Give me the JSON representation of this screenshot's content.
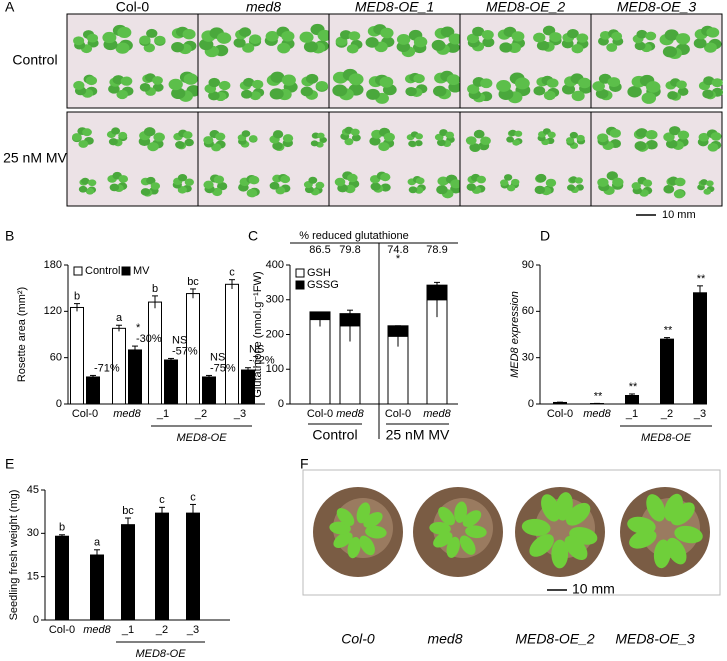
{
  "panels": {
    "letters": [
      "A",
      "B",
      "C",
      "D",
      "E",
      "F"
    ]
  },
  "photo_a": {
    "columns": [
      "Col-0",
      "med8",
      "MED8-OE_1",
      "MED8-OE_2",
      "MED8-OE_3"
    ],
    "rows": [
      "Control",
      "25 nM MV"
    ],
    "scale": "10 mm"
  },
  "photo_f": {
    "labels": [
      "Col-0",
      "med8",
      "MED8-OE_2",
      "MED8-OE_3"
    ],
    "scale": "10 mm"
  },
  "chart_data": [
    {
      "type": "bar",
      "ylabel": "Rosette area (mm²)",
      "categories": [
        "Col-0",
        "med8",
        "_1",
        "_2",
        "_3"
      ],
      "group": {
        "label": "MED8-OE",
        "span": [
          2,
          4
        ]
      },
      "series": [
        {
          "name": "Control",
          "color": "#ffffff",
          "values": [
            125,
            98,
            132,
            143,
            155
          ],
          "errors": [
            5,
            4,
            8,
            6,
            6
          ],
          "letters": [
            "b",
            "a",
            "b",
            "bc",
            "c"
          ]
        },
        {
          "name": "MV",
          "color": "#000000",
          "values": [
            35,
            70,
            57,
            35,
            44
          ],
          "errors": [
            2,
            5,
            2,
            2,
            3
          ],
          "significance": [
            null,
            "*",
            "NS",
            "NS",
            "NS"
          ],
          "changes": [
            "-71%",
            "-30%",
            "-57%",
            "-75%",
            "-72%"
          ]
        }
      ],
      "ylim": [
        0,
        180
      ],
      "yticks": [
        0,
        60,
        120,
        180
      ],
      "legend": "top-left"
    },
    {
      "type": "stacked_bar",
      "ylabel": "Glutathione (nmol.g⁻¹FW)",
      "categories": [
        "Col-0",
        "med8",
        "Col-0",
        "med8"
      ],
      "groups": [
        {
          "label": "Control",
          "span": [
            0,
            1
          ]
        },
        {
          "label": "25 nM MV",
          "span": [
            2,
            3
          ]
        }
      ],
      "series": [
        {
          "name": "GSH",
          "color": "#ffffff",
          "values": [
            243,
            225,
            195,
            300
          ],
          "errors": [
            20,
            45,
            30,
            50
          ]
        },
        {
          "name": "GSSG",
          "color": "#000000",
          "values": [
            22,
            35,
            30,
            42
          ]
        }
      ],
      "header": "% reduced glutathione",
      "reduced": [
        86.5,
        79.8,
        74.8,
        78.9
      ],
      "reduced_significance": [
        null,
        null,
        "*",
        null
      ],
      "ylim": [
        0,
        400
      ],
      "yticks": [
        0,
        100,
        200,
        300,
        400
      ],
      "legend": "top-left"
    },
    {
      "type": "bar",
      "ylabel": "MED8 expression",
      "categories": [
        "Col-0",
        "med8",
        "_1",
        "_2",
        "_3"
      ],
      "group": {
        "label": "MED8-OE",
        "span": [
          2,
          4
        ]
      },
      "series": [
        {
          "color": "#000000",
          "values": [
            1,
            0.3,
            5.5,
            42,
            72
          ],
          "errors": [
            0.2,
            0.1,
            1,
            1,
            4.5
          ],
          "significance": [
            null,
            "**",
            "**",
            "**",
            "**"
          ]
        }
      ],
      "ylim": [
        0,
        90
      ],
      "yticks": [
        0,
        30,
        60,
        90
      ]
    },
    {
      "type": "bar",
      "ylabel": "Seedling fresh weight (mg)",
      "categories": [
        "Col-0",
        "med8",
        "_1",
        "_2",
        "_3"
      ],
      "group": {
        "label": "MED8-OE",
        "span": [
          2,
          4
        ]
      },
      "series": [
        {
          "color": "#000000",
          "values": [
            29,
            22.5,
            33,
            37,
            37
          ],
          "errors": [
            0.5,
            1.8,
            2.3,
            2,
            3
          ],
          "letters": [
            "b",
            "a",
            "bc",
            "c",
            "c"
          ]
        }
      ],
      "ylim": [
        0,
        45
      ],
      "yticks": [
        0,
        15,
        30,
        45
      ]
    }
  ]
}
